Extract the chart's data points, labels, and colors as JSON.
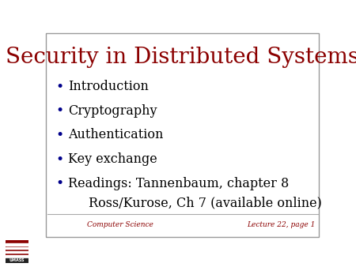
{
  "title": "Security in Distributed Systems",
  "title_color": "#8B0000",
  "title_fontsize": 20,
  "bullet_color": "#00008B",
  "bullet_text_color": "#000000",
  "bullet_fontsize": 11.5,
  "background_color": "#ffffff",
  "bullets": [
    "Introduction",
    "Cryptography",
    "Authentication",
    "Key exchange",
    "Readings: Tannenbaum, chapter 8"
  ],
  "sub_bullet": "Ross/Kurose, Ch 7 (available online)",
  "footer_left": "Computer Science",
  "footer_right": "Lecture 22, page 1",
  "footer_color": "#8B0000",
  "footer_fontsize": 6.5,
  "divider_color": "#aaaaaa",
  "border_color": "#999999"
}
